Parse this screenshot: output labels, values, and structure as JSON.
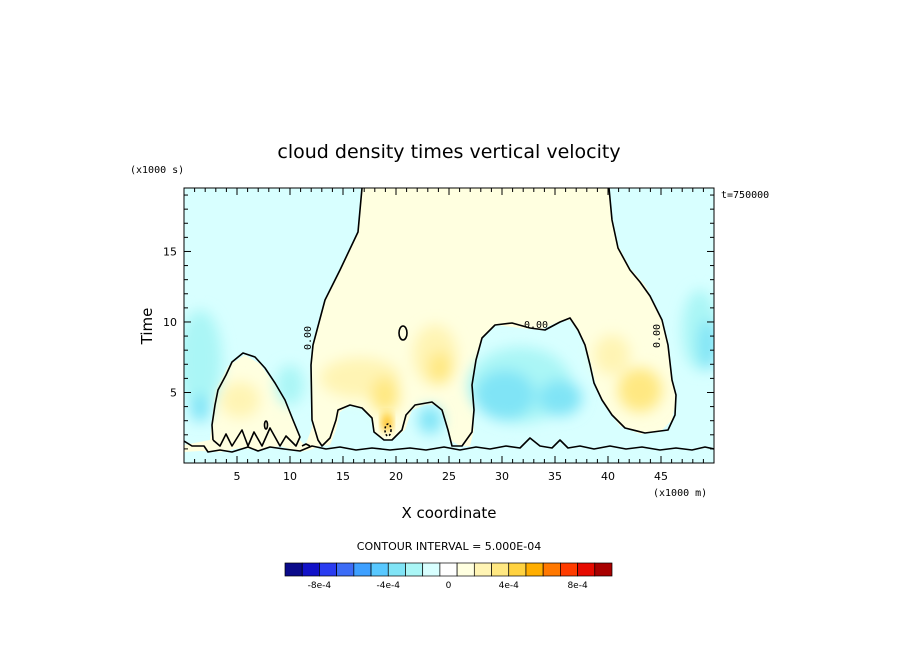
{
  "chart_data": {
    "type": "heatmap",
    "title": "cloud density times vertical velocity",
    "xlabel": "X coordinate",
    "ylabel": "Time",
    "x_units": "(x1000 m)",
    "y_units": "(x1000 s)",
    "time_stamp": "t=750000",
    "xlim": [
      0,
      50
    ],
    "ylim": [
      0,
      19.5
    ],
    "x_ticks": [
      5,
      10,
      15,
      20,
      25,
      30,
      35,
      40,
      45
    ],
    "y_ticks": [
      5,
      10,
      15
    ],
    "contour_interval_text": "CONTOUR INTERVAL = 5.000E-04",
    "contour_label": "0.00",
    "colorbar": {
      "colors": [
        "#0a0a8a",
        "#1212c8",
        "#2a3cf0",
        "#3c6cf6",
        "#3ea0ff",
        "#58c8ff",
        "#80e4f6",
        "#aaf6f6",
        "#d8ffff",
        "#ffffff",
        "#ffffe0",
        "#fff4b4",
        "#ffe882",
        "#ffd240",
        "#ffae00",
        "#ff7800",
        "#ff3c00",
        "#e60a00",
        "#a80000"
      ],
      "tick_labels": [
        "-8e-4",
        "-4e-4",
        "0",
        "4e-4",
        "8e-4"
      ],
      "tick_values": [
        -0.0008,
        -0.0004,
        0,
        0.0004,
        0.0008
      ]
    }
  }
}
